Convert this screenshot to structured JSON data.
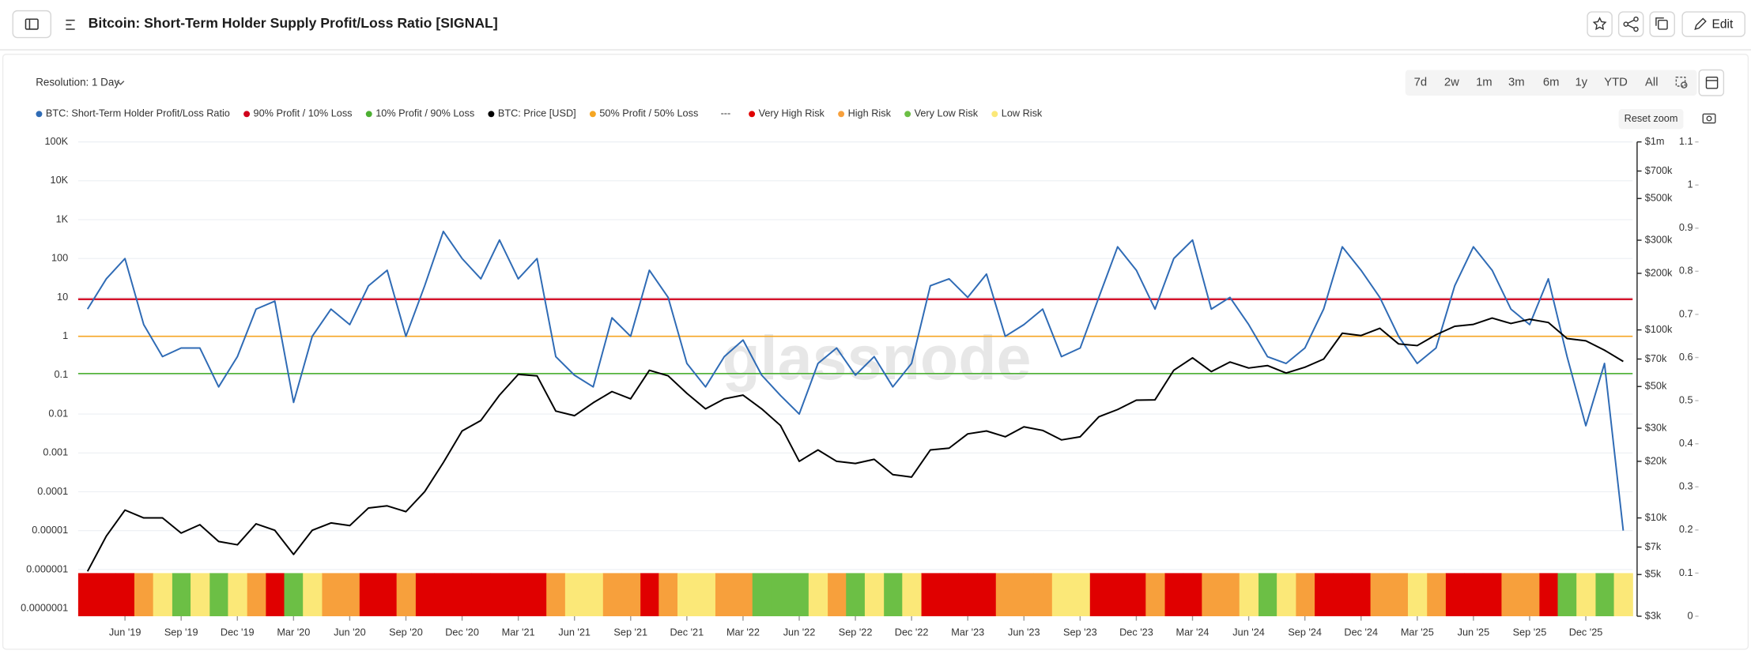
{
  "header": {
    "title": "Bitcoin: Short-Term Holder Supply Profit/Loss Ratio [SIGNAL]",
    "edit": "Edit"
  },
  "controls": {
    "resolution": "Resolution: 1 Day",
    "ranges": [
      "7d",
      "2w",
      "1m",
      "3m",
      "6m",
      "1y",
      "YTD",
      "All"
    ],
    "reset_zoom": "Reset zoom"
  },
  "chart_data": {
    "type": "line",
    "watermark": "glassnode",
    "legend_separator": "---",
    "categories": [
      null,
      null,
      "Jun '19",
      null,
      null,
      "Sep '19",
      null,
      null,
      "Dec '19",
      null,
      null,
      "Mar '20",
      null,
      null,
      "Jun '20",
      null,
      null,
      "Sep '20",
      null,
      null,
      "Dec '20",
      null,
      null,
      "Mar '21",
      null,
      null,
      "Jun '21",
      null,
      null,
      "Sep '21",
      null,
      null,
      "Dec '21",
      null,
      null,
      "Mar '22",
      null,
      null,
      "Jun '22",
      null,
      null,
      "Sep '22",
      null,
      null,
      "Dec '22",
      null,
      null,
      "Mar '23",
      null,
      null,
      "Jun '23",
      null,
      null,
      "Sep '23",
      null,
      null,
      "Dec '23",
      null,
      null,
      "Mar '24",
      null,
      null,
      "Jun '24",
      null,
      null,
      "Sep '24",
      null,
      null,
      "Dec '24",
      null,
      null,
      "Mar '25",
      null,
      null,
      "Jun '25",
      null,
      null,
      "Sep '25",
      null,
      null,
      "Dec '25",
      null,
      null
    ],
    "log_y": true,
    "ylim": [
      6.3e-08,
      100000
    ],
    "yticks": [
      {
        "value": 100000,
        "label": "100K"
      },
      {
        "value": 10000,
        "label": "10K"
      },
      {
        "value": 1000,
        "label": "1K"
      },
      100,
      10,
      1,
      0.1,
      0.01,
      0.001,
      0.0001,
      1e-05,
      1e-06,
      {
        "value": 1e-07,
        "label": "0.0000001"
      }
    ],
    "log_y2": true,
    "y2lim": [
      3000,
      1000000
    ],
    "y2ticks": [
      {
        "value": 1000000,
        "label": "$1m"
      },
      {
        "value": 700000,
        "label": "$700k"
      },
      {
        "value": 500000,
        "label": "$500k"
      },
      {
        "value": 300000,
        "label": "$300k"
      },
      {
        "value": 200000,
        "label": "$200k"
      },
      {
        "value": 100000,
        "label": "$100k"
      },
      {
        "value": 70000,
        "label": "$70k"
      },
      {
        "value": 50000,
        "label": "$50k"
      },
      {
        "value": 30000,
        "label": "$30k"
      },
      {
        "value": 20000,
        "label": "$20k"
      },
      {
        "value": 10000,
        "label": "$10k"
      },
      {
        "value": 7000,
        "label": "$7k"
      },
      {
        "value": 5000,
        "label": "$5k"
      },
      {
        "value": 3000,
        "label": "$3k"
      }
    ],
    "y3lim": [
      0,
      1.1
    ],
    "y3ticks": [
      0,
      0.1,
      0.2,
      0.3,
      0.4,
      0.5,
      0.6,
      0.7,
      0.8,
      0.9,
      1,
      1.1
    ],
    "grid": true,
    "series": [
      {
        "name": "BTC: Short-Term Holder Profit/Loss Ratio",
        "type": "line",
        "color": "#2f6bb5",
        "values": [
          5,
          30,
          100,
          2,
          0.3,
          0.5,
          0.5,
          0.05,
          0.3,
          5,
          8,
          0.02,
          1,
          5,
          2,
          20,
          50,
          1,
          20,
          500,
          100,
          30,
          300,
          30,
          100,
          0.3,
          0.1,
          0.05,
          3,
          1,
          50,
          10,
          0.2,
          0.05,
          0.3,
          0.8,
          0.1,
          0.03,
          0.01,
          0.2,
          0.5,
          0.1,
          0.3,
          0.05,
          0.2,
          20,
          30,
          10,
          40,
          1,
          2,
          5,
          0.3,
          0.5,
          10,
          200,
          50,
          5,
          100,
          300,
          5,
          10,
          2,
          0.3,
          0.2,
          0.5,
          5,
          200,
          50,
          10,
          1,
          0.2,
          0.5,
          20,
          200,
          50,
          5,
          2,
          30,
          0.3,
          0.005,
          0.2,
          1e-05
        ]
      },
      {
        "name": "90% Profit / 10% Loss",
        "type": "hline",
        "color": "#d0021b",
        "value": 9
      },
      {
        "name": "10% Profit / 90% Loss",
        "type": "hline",
        "color": "#4caf32",
        "value": 0.11
      },
      {
        "name": "BTC: Price [USD]",
        "type": "line",
        "axis": "y2",
        "color": "#000000",
        "values": [
          5200,
          8000,
          11000,
          10000,
          10000,
          8300,
          9200,
          7500,
          7200,
          9300,
          8600,
          6400,
          8600,
          9400,
          9100,
          11300,
          11600,
          10800,
          13800,
          19700,
          29000,
          33000,
          45000,
          58000,
          57000,
          37000,
          35000,
          41000,
          47000,
          43000,
          61000,
          57000,
          46000,
          38000,
          43000,
          45000,
          38000,
          31000,
          20000,
          23000,
          20000,
          19500,
          20500,
          17000,
          16500,
          23000,
          23500,
          28000,
          29000,
          27000,
          30500,
          29200,
          26000,
          27000,
          34500,
          37700,
          42300,
          42500,
          61000,
          71000,
          60000,
          67500,
          62700,
          64600,
          59000,
          63300,
          70000,
          96000,
          93400,
          102000,
          84300,
          82500,
          94200,
          104600,
          107000,
          115700,
          108200,
          114000,
          109600,
          90000,
          87500,
          78000,
          68000
        ]
      },
      {
        "name": "50% Profit / 50% Loss",
        "type": "hline",
        "color": "#f5a623",
        "value": 1
      },
      {
        "name": "Very High Risk",
        "type": "column",
        "axis": "y3",
        "color": "#e00000",
        "values": [
          0.1,
          0.1,
          0.1,
          null,
          null,
          null,
          null,
          null,
          null,
          null,
          0.1,
          null,
          null,
          null,
          null,
          0.1,
          0.1,
          null,
          0.1,
          0.1,
          0.1,
          0.1,
          0.1,
          0.1,
          0.1,
          null,
          null,
          null,
          null,
          null,
          0.1,
          null,
          null,
          null,
          null,
          null,
          null,
          null,
          null,
          null,
          null,
          null,
          null,
          null,
          null,
          0.1,
          0.1,
          0.1,
          0.1,
          null,
          null,
          null,
          null,
          null,
          0.1,
          0.1,
          0.1,
          null,
          0.1,
          0.1,
          null,
          null,
          null,
          null,
          null,
          null,
          0.1,
          0.1,
          0.1,
          null,
          null,
          null,
          null,
          0.1,
          0.1,
          0.1,
          null,
          null,
          0.1,
          null,
          null,
          null,
          null
        ]
      },
      {
        "name": "High Risk",
        "type": "column",
        "axis": "y3",
        "color": "#f7a03c",
        "values": [
          null,
          null,
          null,
          0.1,
          null,
          null,
          null,
          null,
          null,
          0.1,
          null,
          null,
          null,
          0.1,
          0.1,
          null,
          null,
          0.1,
          null,
          null,
          null,
          null,
          null,
          null,
          null,
          0.1,
          null,
          null,
          0.1,
          0.1,
          null,
          0.1,
          null,
          null,
          0.1,
          0.1,
          null,
          null,
          null,
          null,
          0.1,
          null,
          null,
          null,
          null,
          null,
          null,
          null,
          null,
          0.1,
          0.1,
          0.1,
          null,
          null,
          null,
          null,
          null,
          0.1,
          null,
          null,
          0.1,
          0.1,
          null,
          null,
          null,
          0.1,
          null,
          null,
          null,
          0.1,
          0.1,
          null,
          0.1,
          null,
          null,
          null,
          0.1,
          0.1,
          null,
          null,
          null,
          null,
          null
        ]
      },
      {
        "name": "Very Low Risk",
        "type": "column",
        "axis": "y3",
        "color": "#6cbf45",
        "values": [
          null,
          null,
          null,
          null,
          null,
          0.1,
          null,
          0.1,
          null,
          null,
          null,
          0.1,
          null,
          null,
          null,
          null,
          null,
          null,
          null,
          null,
          null,
          null,
          null,
          null,
          null,
          null,
          null,
          null,
          null,
          null,
          null,
          null,
          null,
          null,
          null,
          null,
          0.1,
          0.1,
          0.1,
          null,
          null,
          0.1,
          null,
          0.1,
          null,
          null,
          null,
          null,
          null,
          null,
          null,
          null,
          null,
          null,
          null,
          null,
          null,
          null,
          null,
          null,
          null,
          null,
          null,
          0.1,
          null,
          null,
          null,
          null,
          null,
          null,
          null,
          null,
          null,
          null,
          null,
          null,
          null,
          null,
          null,
          0.1,
          null,
          0.1,
          null
        ]
      },
      {
        "name": "Low Risk",
        "type": "column",
        "axis": "y3",
        "color": "#fbe878",
        "values": [
          null,
          null,
          null,
          null,
          0.1,
          null,
          0.1,
          null,
          0.1,
          null,
          null,
          null,
          0.1,
          null,
          null,
          null,
          null,
          null,
          null,
          null,
          null,
          null,
          null,
          null,
          null,
          null,
          0.1,
          0.1,
          null,
          null,
          null,
          null,
          0.1,
          0.1,
          null,
          null,
          null,
          null,
          null,
          0.1,
          null,
          null,
          0.1,
          null,
          0.1,
          null,
          null,
          null,
          null,
          null,
          null,
          null,
          0.1,
          0.1,
          null,
          null,
          null,
          null,
          null,
          null,
          null,
          null,
          0.1,
          null,
          0.1,
          null,
          null,
          null,
          null,
          null,
          null,
          0.1,
          null,
          null,
          null,
          null,
          null,
          null,
          null,
          null,
          0.1,
          null,
          0.1
        ]
      }
    ]
  }
}
